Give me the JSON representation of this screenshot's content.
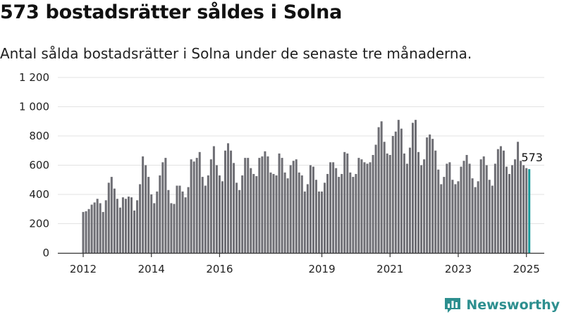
{
  "header": {
    "title": "573 bostadsrätter såldes i Solna",
    "subtitle": "Antal sålda bostadsrätter i Solna under de senaste tre månaderna."
  },
  "brand": {
    "name": "Newsworthy",
    "icon": "newsworthy-logo-icon",
    "color": "#2d8f8f"
  },
  "colors": {
    "bar": "#6e6e74",
    "highlight": "#1a9a9a",
    "grid": "#e3e3e3",
    "axis": "#333333"
  },
  "chart_data": {
    "type": "bar",
    "title": "573 bostadsrätter såldes i Solna",
    "subtitle": "Antal sålda bostadsrätter i Solna under de senaste tre månaderna.",
    "xlabel": "",
    "ylabel": "",
    "ylim": [
      0,
      1200
    ],
    "y_ticks": [
      0,
      200,
      400,
      600,
      800,
      1000,
      1200
    ],
    "y_tick_labels": [
      "0",
      "200",
      "400",
      "600",
      "800",
      "1 000",
      "1 200"
    ],
    "x_start": 2012.0,
    "x_step": 0.08333,
    "x_ticks": [
      2012,
      2014,
      2016,
      2019,
      2021,
      2023,
      2025
    ],
    "grid": true,
    "highlight_last": true,
    "annotation": "573",
    "values": [
      280,
      285,
      300,
      330,
      345,
      370,
      340,
      280,
      360,
      480,
      520,
      440,
      370,
      310,
      380,
      370,
      385,
      380,
      290,
      360,
      470,
      660,
      600,
      520,
      400,
      340,
      420,
      530,
      620,
      650,
      430,
      340,
      335,
      460,
      460,
      420,
      380,
      450,
      640,
      625,
      650,
      690,
      520,
      460,
      530,
      640,
      730,
      600,
      530,
      490,
      700,
      750,
      700,
      615,
      480,
      430,
      530,
      650,
      650,
      580,
      540,
      525,
      650,
      660,
      695,
      660,
      550,
      540,
      530,
      680,
      650,
      550,
      510,
      600,
      630,
      640,
      550,
      530,
      420,
      470,
      600,
      590,
      500,
      420,
      420,
      480,
      540,
      620,
      620,
      580,
      520,
      540,
      690,
      680,
      550,
      520,
      540,
      650,
      640,
      620,
      610,
      620,
      670,
      740,
      860,
      900,
      760,
      680,
      670,
      800,
      830,
      910,
      850,
      680,
      610,
      720,
      890,
      910,
      690,
      600,
      640,
      790,
      810,
      780,
      700,
      570,
      470,
      520,
      610,
      620,
      500,
      470,
      490,
      590,
      630,
      670,
      610,
      510,
      450,
      490,
      640,
      660,
      600,
      500,
      460,
      610,
      710,
      730,
      700,
      590,
      540,
      600,
      640,
      760,
      630,
      600,
      580,
      573
    ]
  }
}
